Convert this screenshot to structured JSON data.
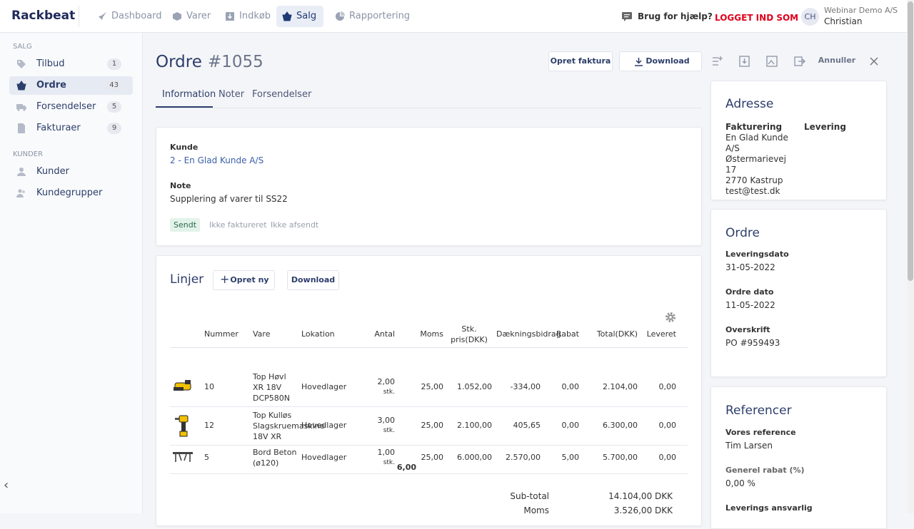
{
  "nav": {
    "brand": "Rackbeat",
    "items": [
      "Dashboard",
      "Varer",
      "Indkøb",
      "Salg",
      "Rapportering"
    ],
    "help": "Brug for hjælp?",
    "logged_in": "LOGGET IND SOM",
    "avatar": "CH",
    "company": "Webinar Demo A/S",
    "user": "Christian"
  },
  "sidebar": {
    "sections": [
      {
        "title": "SALG",
        "items": [
          {
            "label": "Tilbud",
            "count": "1"
          },
          {
            "label": "Ordre",
            "count": "43"
          },
          {
            "label": "Forsendelser",
            "count": "5"
          },
          {
            "label": "Fakturaer",
            "count": "9"
          }
        ]
      },
      {
        "title": "KUNDER",
        "items": [
          {
            "label": "Kunder"
          },
          {
            "label": "Kundegrupper"
          }
        ]
      }
    ]
  },
  "header": {
    "title": "Ordre",
    "number": "#1055",
    "invoice": "Opret faktura",
    "download": "Download",
    "cancel": "Annuller"
  },
  "tabs": [
    "Information",
    "Noter",
    "Forsendelser"
  ],
  "info": {
    "customer_label": "Kunde",
    "customer": "2 - En Glad Kunde A/S",
    "note_label": "Note",
    "note": "Supplering af varer til SS22",
    "statuses": [
      "Sendt",
      "Ikke faktureret",
      "Ikke afsendt"
    ]
  },
  "lines": {
    "title": "Linjer",
    "create": "Opret ny",
    "download": "Download",
    "columns": [
      "Nummer",
      "Vare",
      "Lokation",
      "Antal",
      "Moms",
      "Stk. pris(DKK)",
      "Dækningsbidrag",
      "Rabat",
      "Total(DKK)",
      "Leveret"
    ],
    "rows": [
      {
        "number": "10",
        "item": "Top Høvl XR 18V DCP580N",
        "location": "Hovedlager",
        "qty": "2,00",
        "unit": "stk.",
        "vat": "25,00",
        "price": "1.052,00",
        "margin": "-334,00",
        "discount": "0,00",
        "total": "2.104,00",
        "delivered": "0,00"
      },
      {
        "number": "12",
        "item": "Top Kulløs Slagskruemaskine 18V XR",
        "location": "Hovedlager",
        "qty": "3,00",
        "unit": "stk.",
        "vat": "25,00",
        "price": "2.100,00",
        "margin": "405,65",
        "discount": "0,00",
        "total": "6.300,00",
        "delivered": "0,00"
      },
      {
        "number": "5",
        "item": "Bord Beton (ø120)",
        "location": "Hovedlager",
        "qty": "1,00",
        "unit": "stk.",
        "vat": "25,00",
        "price": "6.000,00",
        "margin": "2.570,00",
        "discount": "5,00",
        "total": "5.700,00",
        "delivered": "0,00"
      }
    ],
    "total_qty": "6,00",
    "summary": [
      {
        "label": "Sub-total",
        "value": "14.104,00 DKK"
      },
      {
        "label": "Moms",
        "value": "3.526,00 DKK"
      }
    ]
  },
  "address": {
    "title": "Adresse",
    "billing_label": "Fakturering",
    "delivery_label": "Levering",
    "billing": [
      "En Glad Kunde A/S",
      "Østermarievej 17",
      "2770 Kastrup",
      "test@test.dk"
    ]
  },
  "order": {
    "title": "Ordre",
    "fields": [
      {
        "label": "Leveringsdato",
        "value": "31-05-2022"
      },
      {
        "label": "Ordre dato",
        "value": "11-05-2022"
      },
      {
        "label": "Overskrift",
        "value": "PO #959493"
      }
    ]
  },
  "references": {
    "title": "Referencer",
    "fields": [
      {
        "label": "Vores reference",
        "value": "Tim Larsen"
      },
      {
        "label": "Generel rabat (%)",
        "value": "0,00 %"
      },
      {
        "label": "Leverings ansvarlig"
      }
    ]
  }
}
